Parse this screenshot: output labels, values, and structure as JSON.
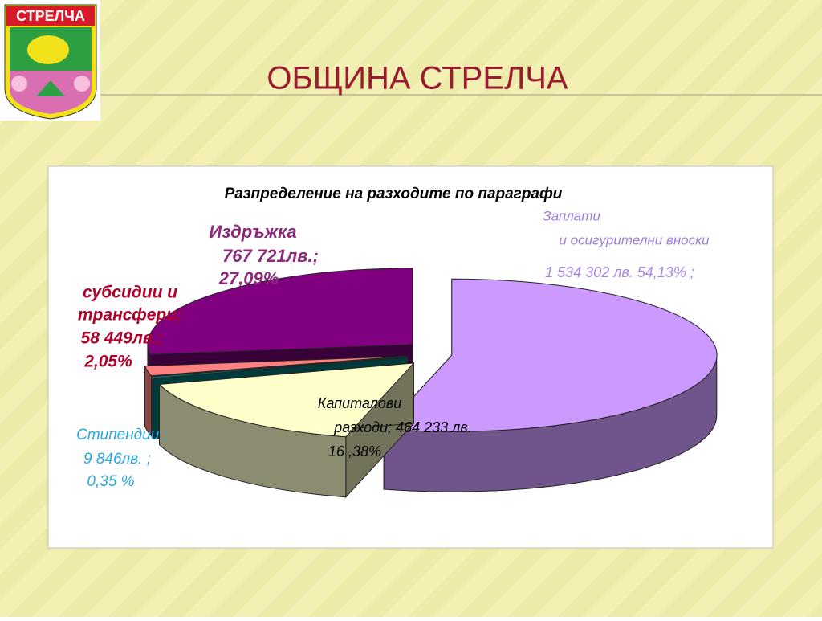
{
  "header": {
    "logo_text": "СТРЕЛЧА",
    "title": "ОБЩИНА СТРЕЛЧА"
  },
  "chart_data": {
    "type": "pie",
    "title": "Разпределение на разходите по параграфи",
    "slices": [
      {
        "name_lines": [
          "Заплати",
          "и осигурителни вноски"
        ],
        "value_lines": [
          "1 534 302 лв.   54,13% ;"
        ],
        "value": 54.13,
        "color": "#cc99ff"
      },
      {
        "name_lines": [
          "Капиталови",
          "разходи; 464 233 лв."
        ],
        "value_lines": [
          "16 ,38%"
        ],
        "value": 16.38,
        "color": "#ffffcc"
      },
      {
        "name_lines": [
          "Стипендии ;"
        ],
        "value_lines": [
          "9 846лв. ;",
          "0,35 %"
        ],
        "value": 0.35,
        "color": "#008080"
      },
      {
        "name_lines": [
          "субсидии и",
          "трансфери;"
        ],
        "value_lines": [
          "58 449лв.;",
          "2,05%"
        ],
        "value": 2.05,
        "color": "#ff8080"
      },
      {
        "name_lines": [
          "Издръжка"
        ],
        "value_lines": [
          "767 721лв.;",
          "27,09%"
        ],
        "value": 27.09,
        "color": "#800080"
      }
    ]
  }
}
